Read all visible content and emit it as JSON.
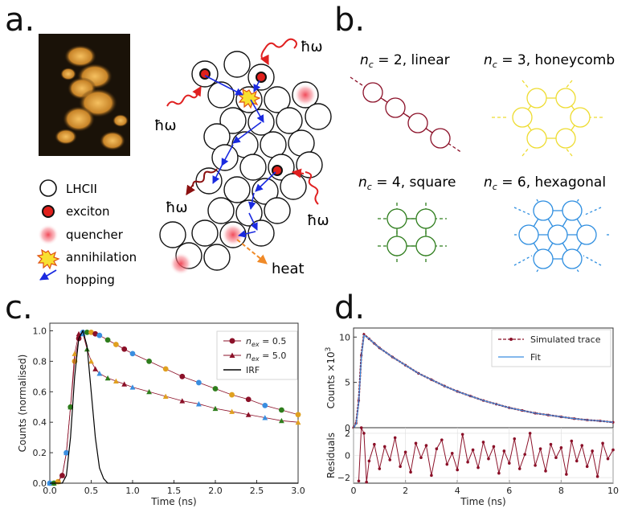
{
  "letters": {
    "a": "a.",
    "b": "b.",
    "c": "c.",
    "d": "d."
  },
  "panel_a": {
    "hbar_omega": "ħω",
    "heat": "heat",
    "legend": {
      "lhcii": "LHCII",
      "exciton": "exciton",
      "quencher": "quencher",
      "annihilation": "annihilation",
      "hopping": "hopping"
    },
    "colors": {
      "exciton": "#e0201c",
      "quencher": "#f05060",
      "photon": "#e02020",
      "emission": "#8b1010",
      "heat": "#f08a28",
      "hop": "#1a2ae0"
    }
  },
  "panel_b": {
    "linear": {
      "nc": "2",
      "name": "linear",
      "color": "#8b1028"
    },
    "honeycomb": {
      "nc": "3",
      "name": "honeycomb",
      "color": "#eedc30"
    },
    "square": {
      "nc": "4",
      "name": "square",
      "color": "#2e7d1c"
    },
    "hexagonal": {
      "nc": "6",
      "name": "hexagonal",
      "color": "#2e8ee0"
    }
  },
  "chart_data": [
    {
      "type": "scatter",
      "xlabel": "Time (ns)",
      "ylabel": "Counts (normalised)",
      "xlim": [
        0,
        3
      ],
      "ylim": [
        0,
        1.05
      ],
      "xticks": [
        "0.0",
        "0.5",
        "1.0",
        "1.5",
        "2.0",
        "2.5",
        "3.0"
      ],
      "yticks": [
        "0.0",
        "0.2",
        "0.4",
        "0.6",
        "0.8",
        "1.0"
      ],
      "legend_position": "top-right",
      "series": [
        {
          "name": "n_ex = 0.5",
          "legend_main": "n",
          "legend_sub": "ex",
          "legend_value": " = 0.5",
          "marker": "circle",
          "color": "#8b1028",
          "x": [
            0.0,
            0.05,
            0.1,
            0.15,
            0.2,
            0.25,
            0.3,
            0.35,
            0.4,
            0.45,
            0.5,
            0.55,
            0.6,
            0.7,
            0.8,
            0.9,
            1.0,
            1.2,
            1.4,
            1.6,
            1.8,
            2.0,
            2.2,
            2.4,
            2.6,
            2.8,
            3.0
          ],
          "y": [
            0.0,
            0.0,
            0.01,
            0.05,
            0.2,
            0.5,
            0.8,
            0.95,
            0.99,
            0.99,
            0.99,
            0.98,
            0.97,
            0.94,
            0.91,
            0.88,
            0.85,
            0.8,
            0.75,
            0.7,
            0.66,
            0.62,
            0.58,
            0.55,
            0.51,
            0.48,
            0.45
          ]
        },
        {
          "name": "n_ex = 5.0",
          "legend_main": "n",
          "legend_sub": "ex",
          "legend_value": " = 5.0",
          "marker": "triangle",
          "color": "#8b1028",
          "x": [
            0.0,
            0.05,
            0.1,
            0.15,
            0.2,
            0.25,
            0.3,
            0.35,
            0.4,
            0.45,
            0.5,
            0.55,
            0.6,
            0.7,
            0.8,
            0.9,
            1.0,
            1.2,
            1.4,
            1.6,
            1.8,
            2.0,
            2.2,
            2.4,
            2.6,
            2.8,
            3.0
          ],
          "y": [
            0.0,
            0.0,
            0.01,
            0.05,
            0.2,
            0.5,
            0.85,
            0.98,
            0.98,
            0.88,
            0.8,
            0.75,
            0.72,
            0.69,
            0.67,
            0.65,
            0.63,
            0.6,
            0.57,
            0.54,
            0.52,
            0.49,
            0.47,
            0.45,
            0.43,
            0.41,
            0.4
          ]
        },
        {
          "name": "IRF",
          "marker": "none",
          "color": "#000000",
          "x": [
            0.0,
            0.15,
            0.2,
            0.25,
            0.3,
            0.35,
            0.4,
            0.45,
            0.5,
            0.55,
            0.6,
            0.65,
            0.7,
            0.8,
            3.0
          ],
          "y": [
            0.0,
            0.0,
            0.05,
            0.3,
            0.7,
            0.95,
            1.0,
            0.9,
            0.6,
            0.3,
            0.1,
            0.03,
            0.0,
            0.0,
            0.0
          ]
        }
      ]
    },
    {
      "type": "line",
      "xlabel": "Time (ns)",
      "ylabel": "Counts ×10",
      "ylabel_exp": "3",
      "xlim": [
        0,
        10
      ],
      "ylim": [
        0,
        11
      ],
      "xticks": [
        "0",
        "2",
        "4",
        "6",
        "8",
        "10"
      ],
      "yticks": [
        "0",
        "5",
        "10"
      ],
      "legend_position": "top-right",
      "series": [
        {
          "name": "Simulated trace",
          "style": "dashed-dots",
          "color": "#8b1028",
          "x": [
            0,
            0.1,
            0.2,
            0.3,
            0.4,
            0.6,
            0.8,
            1,
            1.5,
            2,
            2.5,
            3,
            3.5,
            4,
            4.5,
            5,
            5.5,
            6,
            6.5,
            7,
            7.5,
            8,
            8.5,
            9,
            9.5,
            10
          ],
          "y": [
            0,
            0.5,
            3,
            8,
            10.3,
            9.8,
            9.3,
            8.8,
            7.8,
            6.9,
            6.0,
            5.3,
            4.6,
            4.0,
            3.5,
            3.0,
            2.6,
            2.2,
            1.9,
            1.6,
            1.4,
            1.2,
            1.0,
            0.85,
            0.75,
            0.6
          ]
        },
        {
          "name": "Fit",
          "style": "solid",
          "color": "#3a8ee0",
          "x": [
            0,
            0.1,
            0.2,
            0.3,
            0.4,
            0.6,
            0.8,
            1,
            1.5,
            2,
            2.5,
            3,
            3.5,
            4,
            4.5,
            5,
            5.5,
            6,
            6.5,
            7,
            7.5,
            8,
            8.5,
            9,
            9.5,
            10
          ],
          "y": [
            0,
            0.4,
            2.8,
            7.8,
            10.2,
            9.8,
            9.3,
            8.8,
            7.8,
            6.9,
            6.0,
            5.3,
            4.6,
            4.0,
            3.5,
            3.0,
            2.6,
            2.2,
            1.9,
            1.6,
            1.4,
            1.2,
            1.0,
            0.85,
            0.75,
            0.6
          ]
        }
      ]
    },
    {
      "type": "line",
      "xlabel": "Time (ns)",
      "ylabel": "Residuals",
      "xlim": [
        0,
        10
      ],
      "ylim": [
        -2.5,
        2.5
      ],
      "xticks": [
        "0",
        "2",
        "4",
        "6",
        "8",
        "10"
      ],
      "yticks": [
        "2",
        "0",
        "−2"
      ],
      "series": [
        {
          "name": "residuals",
          "color": "#8b1028",
          "x": [
            0.2,
            0.3,
            0.4,
            0.5,
            0.6,
            0.8,
            1.0,
            1.2,
            1.4,
            1.6,
            1.8,
            2.0,
            2.2,
            2.4,
            2.6,
            2.8,
            3.0,
            3.2,
            3.4,
            3.6,
            3.8,
            4.0,
            4.2,
            4.4,
            4.6,
            4.8,
            5.0,
            5.2,
            5.4,
            5.6,
            5.8,
            6.0,
            6.2,
            6.4,
            6.6,
            6.8,
            7.0,
            7.2,
            7.4,
            7.6,
            7.8,
            8.0,
            8.2,
            8.4,
            8.6,
            8.8,
            9.0,
            9.2,
            9.4,
            9.6,
            9.8,
            10.0
          ],
          "y": [
            -2.3,
            2.5,
            2.0,
            -2.4,
            -0.5,
            1.0,
            -1.2,
            0.8,
            -0.4,
            1.6,
            -1.0,
            0.3,
            -1.5,
            1.1,
            -0.2,
            0.9,
            -1.8,
            0.6,
            1.4,
            -0.8,
            0.2,
            -1.3,
            1.9,
            -0.6,
            0.5,
            -1.1,
            1.2,
            -0.3,
            0.8,
            -1.6,
            0.4,
            -0.7,
            1.5,
            -1.2,
            0.1,
            2.0,
            -0.9,
            0.6,
            -1.4,
            1.0,
            -0.2,
            0.7,
            -1.7,
            1.3,
            -0.5,
            0.9,
            -1.0,
            0.4,
            -1.9,
            1.1,
            -0.3,
            0.5
          ]
        }
      ]
    }
  ]
}
